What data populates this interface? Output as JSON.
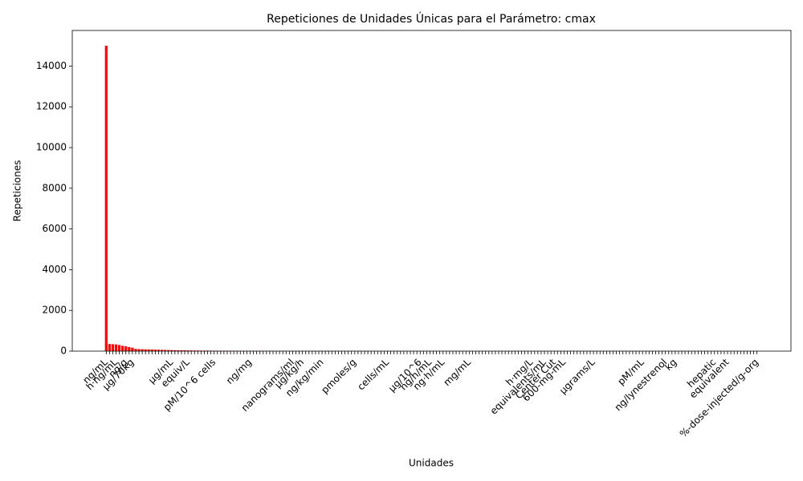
{
  "chart_data": {
    "type": "bar",
    "title": "Repeticiones de Unidades Únicas para el Parámetro: cmax",
    "xlabel": "Unidades",
    "ylabel": "Repeticiones",
    "color": "#ff0000",
    "ylim": [
      0,
      15750
    ],
    "yticks": [
      0,
      2000,
      4000,
      6000,
      8000,
      10000,
      12000,
      14000
    ],
    "categories": [
      "ng/mL",
      null,
      null,
      "h·ng/mL",
      null,
      null,
      "ng/g",
      null,
      "μg/70kg",
      null,
      null,
      null,
      null,
      null,
      null,
      null,
      null,
      null,
      null,
      null,
      "μg/mL",
      null,
      null,
      null,
      null,
      "equiv/L",
      null,
      null,
      null,
      null,
      null,
      null,
      null,
      "pM/10^6 cells",
      null,
      null,
      null,
      null,
      null,
      null,
      null,
      null,
      null,
      null,
      "ng/mg",
      null,
      null,
      null,
      null,
      null,
      null,
      null,
      null,
      null,
      null,
      null,
      null,
      "nanograms/ml",
      null,
      null,
      "μg/kg/h",
      null,
      null,
      null,
      null,
      null,
      "ng/kg/min",
      null,
      null,
      null,
      null,
      null,
      null,
      null,
      null,
      null,
      "pmoles/g",
      null,
      null,
      null,
      null,
      null,
      null,
      null,
      null,
      null,
      "cells/mL",
      null,
      null,
      null,
      null,
      null,
      null,
      null,
      null,
      null,
      "μg/10^6",
      null,
      null,
      "ng/h/mL",
      null,
      null,
      null,
      "ng·h/mL",
      null,
      null,
      null,
      null,
      null,
      null,
      null,
      "mg/mL",
      null,
      null,
      null,
      null,
      null,
      null,
      null,
      null,
      null,
      null,
      null,
      null,
      null,
      null,
      null,
      null,
      null,
      null,
      "h·mg/L",
      null,
      null,
      null,
      "equivalents/mL",
      null,
      null,
      "Center Cut",
      null,
      null,
      "600-mg-mL",
      null,
      null,
      null,
      null,
      null,
      null,
      null,
      null,
      "μgrams/L",
      null,
      null,
      null,
      null,
      null,
      null,
      null,
      null,
      null,
      null,
      null,
      null,
      null,
      null,
      "pM/mL",
      null,
      null,
      null,
      null,
      null,
      null,
      "ng/lynestrenol",
      null,
      null,
      "kg",
      null,
      null,
      null,
      null,
      null,
      null,
      null,
      null,
      null,
      null,
      null,
      "hepatic",
      null,
      null,
      null,
      "equivalent",
      null,
      null,
      null,
      null,
      null,
      null,
      null,
      null,
      "%-dose-injected/g-org"
    ],
    "values": [
      15000,
      350,
      340,
      330,
      300,
      260,
      240,
      200,
      170,
      110,
      100,
      95,
      90,
      85,
      80,
      75,
      70,
      65,
      60,
      55,
      50,
      46,
      42,
      40,
      38,
      35,
      33,
      30,
      28,
      26,
      25,
      24,
      22,
      21,
      20,
      19,
      18,
      17,
      16,
      15,
      15,
      14,
      14,
      13,
      13,
      12,
      12,
      11,
      11,
      10,
      10,
      10,
      9,
      9,
      9,
      8,
      8,
      8,
      8,
      7,
      7,
      7,
      7,
      6,
      6,
      6,
      6,
      6,
      5,
      5,
      5,
      5,
      5,
      5,
      5,
      4,
      4,
      4,
      4,
      4,
      4,
      4,
      4,
      3,
      3,
      3,
      3,
      3,
      3,
      3,
      3,
      3,
      3,
      3,
      3,
      3,
      2,
      2,
      2,
      2,
      2,
      2,
      2,
      2,
      2,
      2,
      2,
      2,
      2,
      2,
      2,
      2,
      2,
      2,
      2,
      2,
      2,
      2,
      2,
      2,
      2,
      2,
      2,
      2,
      2,
      2,
      2,
      2,
      2,
      2,
      2,
      2,
      2,
      2,
      2,
      2,
      2,
      2,
      2,
      2,
      1,
      1,
      1,
      1,
      1,
      1,
      1,
      1,
      1,
      1,
      1,
      1,
      1,
      1,
      1,
      1,
      1,
      1,
      1,
      1,
      1,
      1,
      1,
      1,
      1,
      1,
      1,
      1,
      1,
      1,
      1,
      1,
      1,
      1,
      1,
      1,
      1,
      1,
      1,
      1,
      1,
      1,
      1,
      1,
      1,
      1,
      1,
      1,
      1,
      1,
      1,
      1,
      1,
      1,
      1,
      1,
      1,
      1,
      1,
      1
    ]
  }
}
